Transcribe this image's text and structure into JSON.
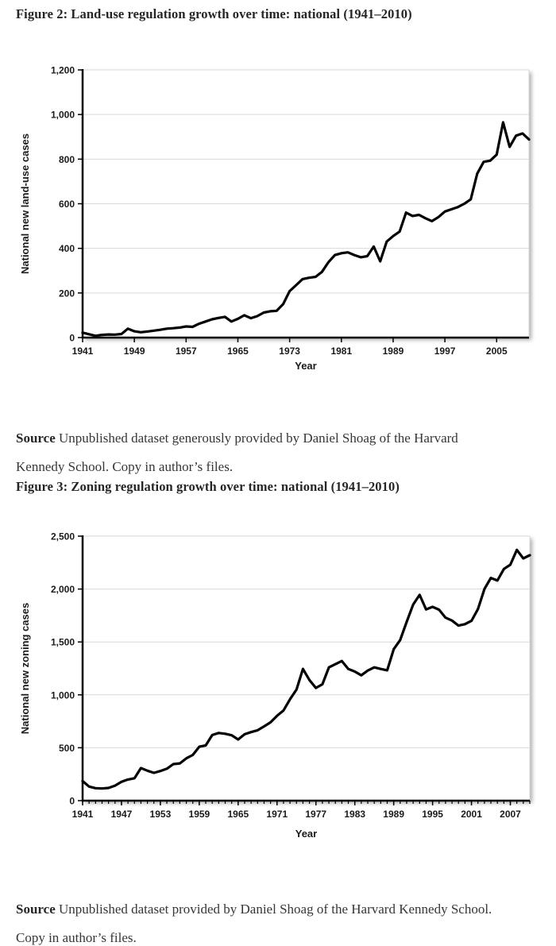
{
  "figure2": {
    "title": "Figure 2: Land-use regulation growth over time: national (1941–2010)",
    "source_label": "Source",
    "source_text": " Unpublished dataset generously provided by Daniel Shoag of the Harvard Kennedy School. Copy in author’s files.",
    "chart_data": {
      "type": "line",
      "title": "",
      "xlabel": "Year",
      "ylabel": "National new land-use cases",
      "x_start": 1941,
      "x_end": 2010,
      "ylim": [
        0,
        1200
      ],
      "ytick_step": 200,
      "ytick_labels": [
        "0",
        "200",
        "400",
        "600",
        "800",
        "1,000",
        "1,200"
      ],
      "xtick_start": 1941,
      "xtick_step": 8,
      "xtick_end": 2005,
      "xtick_labels": [
        "1941",
        "1949",
        "1957",
        "1965",
        "1973",
        "1981",
        "1989",
        "1997",
        "2005"
      ],
      "minor_xticks": false,
      "grid": true,
      "legend": "none",
      "line_color": "#000000",
      "grid_color": "#d9d9d9",
      "years": [
        1941,
        1942,
        1943,
        1944,
        1945,
        1946,
        1947,
        1948,
        1949,
        1950,
        1951,
        1952,
        1953,
        1954,
        1955,
        1956,
        1957,
        1958,
        1959,
        1960,
        1961,
        1962,
        1963,
        1964,
        1965,
        1966,
        1967,
        1968,
        1969,
        1970,
        1971,
        1972,
        1973,
        1974,
        1975,
        1976,
        1977,
        1978,
        1979,
        1980,
        1981,
        1982,
        1983,
        1984,
        1985,
        1986,
        1987,
        1988,
        1989,
        1990,
        1991,
        1992,
        1993,
        1994,
        1995,
        1996,
        1997,
        1998,
        1999,
        2000,
        2001,
        2002,
        2003,
        2004,
        2005,
        2006,
        2007,
        2008,
        2009,
        2010
      ],
      "values": [
        22,
        15,
        8,
        12,
        14,
        13,
        16,
        40,
        28,
        24,
        27,
        31,
        35,
        40,
        42,
        45,
        50,
        48,
        62,
        72,
        82,
        88,
        93,
        72,
        84,
        100,
        87,
        96,
        112,
        118,
        120,
        150,
        208,
        235,
        262,
        268,
        272,
        295,
        338,
        370,
        378,
        382,
        370,
        360,
        365,
        408,
        342,
        430,
        455,
        475,
        560,
        545,
        550,
        535,
        522,
        540,
        565,
        575,
        585,
        600,
        620,
        735,
        788,
        793,
        820,
        965,
        855,
        905,
        915,
        888
      ]
    }
  },
  "figure3": {
    "title": "Figure 3: Zoning regulation growth over time: national (1941–2010)",
    "source_label": "Source",
    "source_text": " Unpublished dataset provided by Daniel Shoag of the Harvard Kennedy School. Copy in author’s files.",
    "chart_data": {
      "type": "line",
      "title": "",
      "xlabel": "Year",
      "ylabel": "National new zoning cases",
      "x_start": 1941,
      "x_end": 2010,
      "ylim": [
        0,
        2500
      ],
      "ytick_step": 500,
      "ytick_labels": [
        "0",
        "500",
        "1,000",
        "1,500",
        "2,000",
        "2,500"
      ],
      "xtick_start": 1941,
      "xtick_step": 6,
      "xtick_end": 2007,
      "xtick_labels": [
        "1941",
        "1947",
        "1953",
        "1959",
        "1965",
        "1971",
        "1977",
        "1983",
        "1989",
        "1995",
        "2001",
        "2007"
      ],
      "minor_xticks": true,
      "grid": true,
      "legend": "none",
      "line_color": "#000000",
      "grid_color": "#d9d9d9",
      "years": [
        1941,
        1942,
        1943,
        1944,
        1945,
        1946,
        1947,
        1948,
        1949,
        1950,
        1951,
        1952,
        1953,
        1954,
        1955,
        1956,
        1957,
        1958,
        1959,
        1960,
        1961,
        1962,
        1963,
        1964,
        1965,
        1966,
        1967,
        1968,
        1969,
        1970,
        1971,
        1972,
        1973,
        1974,
        1975,
        1976,
        1977,
        1978,
        1979,
        1980,
        1981,
        1982,
        1983,
        1984,
        1985,
        1986,
        1987,
        1988,
        1989,
        1990,
        1991,
        1992,
        1993,
        1994,
        1995,
        1996,
        1997,
        1998,
        1999,
        2000,
        2001,
        2002,
        2003,
        2004,
        2005,
        2006,
        2007,
        2008,
        2009,
        2010
      ],
      "values": [
        185,
        133,
        118,
        115,
        120,
        142,
        178,
        200,
        212,
        308,
        283,
        263,
        280,
        302,
        345,
        352,
        400,
        432,
        510,
        522,
        620,
        640,
        632,
        618,
        578,
        628,
        648,
        665,
        702,
        740,
        802,
        852,
        958,
        1050,
        1245,
        1140,
        1065,
        1100,
        1260,
        1290,
        1320,
        1245,
        1220,
        1185,
        1230,
        1260,
        1245,
        1232,
        1432,
        1518,
        1690,
        1852,
        1945,
        1808,
        1832,
        1805,
        1730,
        1702,
        1655,
        1668,
        1700,
        1810,
        2000,
        2105,
        2080,
        2190,
        2230,
        2370,
        2290,
        2320
      ]
    }
  }
}
